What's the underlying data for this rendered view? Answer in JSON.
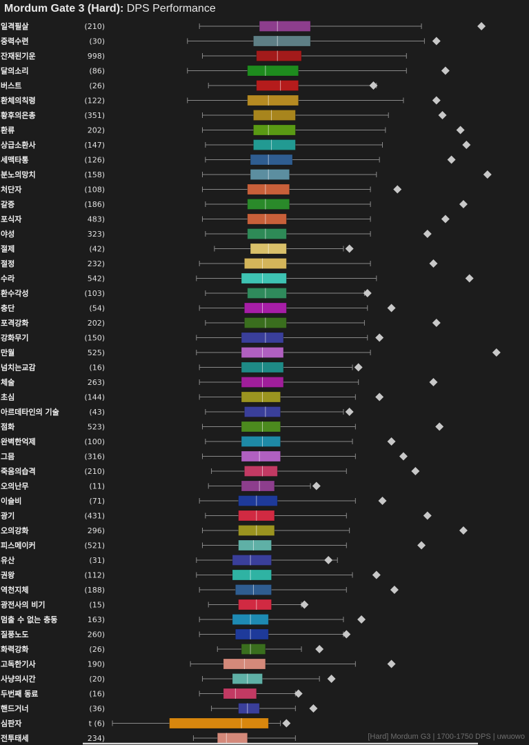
{
  "title_bold": "Mordum Gate 3 (Hard):",
  "title_rest": " DPS Performance",
  "watermark": "[Hard] Mordum G3 | 1700-1750 DPS | uwuowo",
  "chart_data": {
    "type": "box",
    "orientation": "horizontal",
    "xlim": [
      0,
      100
    ],
    "axis_labels_shown": false,
    "categories": [
      {
        "name": "일격필살",
        "count": "(210)",
        "color": "#8d3e8d",
        "w": [
          29,
          103
        ],
        "q": [
          49,
          66
        ],
        "m": 55,
        "o": [
          123
        ]
      },
      {
        "name": "중력수련",
        "count": "(30)",
        "color": "#5e7f85",
        "w": [
          25,
          104
        ],
        "q": [
          47,
          66
        ],
        "m": 55,
        "o": [
          108
        ]
      },
      {
        "name": "잔재된기운",
        "count": "998)",
        "color": "#a31b1b",
        "w": [
          30,
          98
        ],
        "q": [
          48,
          63
        ],
        "m": 55,
        "o": []
      },
      {
        "name": "달의소리",
        "count": "(86)",
        "color": "#1e8c1e",
        "w": [
          25,
          98
        ],
        "q": [
          45,
          62
        ],
        "m": 51,
        "o": [
          111
        ]
      },
      {
        "name": "버스트",
        "count": "(26)",
        "color": "#b51c1c",
        "w": [
          32,
          88
        ],
        "q": [
          48,
          62
        ],
        "m": 56,
        "o": [
          87
        ]
      },
      {
        "name": "환체의칙령",
        "count": "(122)",
        "color": "#b58a22",
        "w": [
          25,
          97
        ],
        "q": [
          45,
          62
        ],
        "m": 52,
        "o": [
          108
        ]
      },
      {
        "name": "황후의은총",
        "count": "(351)",
        "color": "#a8851d",
        "w": [
          30,
          92
        ],
        "q": [
          47,
          61
        ],
        "m": 53,
        "o": [
          110
        ]
      },
      {
        "name": "환류",
        "count": "202)",
        "color": "#5a9a14",
        "w": [
          30,
          91
        ],
        "q": [
          47,
          61
        ],
        "m": 52,
        "o": [
          116
        ]
      },
      {
        "name": "상급소환사",
        "count": "(147)",
        "color": "#229a92",
        "w": [
          31,
          90
        ],
        "q": [
          47,
          61
        ],
        "m": 53,
        "o": [
          118
        ]
      },
      {
        "name": "세맥타통",
        "count": "(126)",
        "color": "#2f5d90",
        "w": [
          31,
          89
        ],
        "q": [
          46,
          60
        ],
        "m": 52,
        "o": [
          113
        ]
      },
      {
        "name": "분노의망치",
        "count": "(158)",
        "color": "#5c8ea0",
        "w": [
          30,
          88
        ],
        "q": [
          46,
          59
        ],
        "m": 52,
        "o": [
          125
        ]
      },
      {
        "name": "처단자",
        "count": "(108)",
        "color": "#c8603a",
        "w": [
          30,
          86
        ],
        "q": [
          45,
          59
        ],
        "m": 51,
        "o": [
          95
        ]
      },
      {
        "name": "갈증",
        "count": "(186)",
        "color": "#2a8a2a",
        "w": [
          31,
          86
        ],
        "q": [
          45,
          59
        ],
        "m": 51,
        "o": [
          117
        ]
      },
      {
        "name": "포식자",
        "count": "483)",
        "color": "#c8603a",
        "w": [
          30,
          86
        ],
        "q": [
          45,
          58
        ],
        "m": 51,
        "o": [
          111
        ]
      },
      {
        "name": "야성",
        "count": "323)",
        "color": "#2e8a57",
        "w": [
          31,
          86
        ],
        "q": [
          45,
          58
        ],
        "m": 51,
        "o": [
          105
        ]
      },
      {
        "name": "절제",
        "count": "(42)",
        "color": "#d9c06a",
        "w": [
          34,
          77
        ],
        "q": [
          46,
          58
        ],
        "m": 52,
        "o": [
          79
        ]
      },
      {
        "name": "절정",
        "count": "232)",
        "color": "#d4b55a",
        "w": [
          29,
          86
        ],
        "q": [
          44,
          58
        ],
        "m": 50,
        "o": [
          107
        ]
      },
      {
        "name": "수라",
        "count": "542)",
        "color": "#3ec3b3",
        "w": [
          28,
          88
        ],
        "q": [
          43,
          58
        ],
        "m": 50,
        "o": [
          119
        ]
      },
      {
        "name": "환수각성",
        "count": "(103)",
        "color": "#2f8a5c",
        "w": [
          31,
          84
        ],
        "q": [
          45,
          58
        ],
        "m": 51,
        "o": [
          85
        ]
      },
      {
        "name": "충단",
        "count": "(54)",
        "color": "#a61ea6",
        "w": [
          29,
          85
        ],
        "q": [
          44,
          58
        ],
        "m": 50,
        "o": [
          93
        ]
      },
      {
        "name": "포격강화",
        "count": "202)",
        "color": "#3a6e1e",
        "w": [
          31,
          84
        ],
        "q": [
          44,
          58
        ],
        "m": 51,
        "o": [
          108
        ]
      },
      {
        "name": "강화무기",
        "count": "(150)",
        "color": "#3a3f9a",
        "w": [
          28,
          85
        ],
        "q": [
          43,
          57
        ],
        "m": 51,
        "o": [
          89
        ]
      },
      {
        "name": "만월",
        "count": "525)",
        "color": "#b060c0",
        "w": [
          28,
          86
        ],
        "q": [
          43,
          57
        ],
        "m": 50,
        "o": [
          128
        ]
      },
      {
        "name": "넘치는교감",
        "count": "(16)",
        "color": "#1e8a86",
        "w": [
          29,
          80
        ],
        "q": [
          43,
          57
        ],
        "m": 50,
        "o": [
          82
        ]
      },
      {
        "name": "체술",
        "count": "263)",
        "color": "#a01e9a",
        "w": [
          29,
          82
        ],
        "q": [
          43,
          57
        ],
        "m": 50,
        "o": [
          107
        ]
      },
      {
        "name": "초심",
        "count": "(144)",
        "color": "#9b9420",
        "w": [
          29,
          81
        ],
        "q": [
          43,
          56
        ],
        "m": 50,
        "o": [
          89
        ]
      },
      {
        "name": "아르데타인의 기술",
        "count": "(43)",
        "color": "#3a3f9a",
        "w": [
          31,
          77
        ],
        "q": [
          44,
          56
        ],
        "m": 51,
        "o": [
          79
        ]
      },
      {
        "name": "점화",
        "count": "523)",
        "color": "#4c8a1e",
        "w": [
          30,
          81
        ],
        "q": [
          43,
          56
        ],
        "m": 50,
        "o": [
          109
        ]
      },
      {
        "name": "완벽한억제",
        "count": "(100)",
        "color": "#1e8aa6",
        "w": [
          31,
          80
        ],
        "q": [
          43,
          56
        ],
        "m": 50,
        "o": [
          93
        ]
      },
      {
        "name": "그믐",
        "count": "(316)",
        "color": "#b060c0",
        "w": [
          30,
          81
        ],
        "q": [
          43,
          56
        ],
        "m": 49,
        "o": [
          97
        ]
      },
      {
        "name": "죽음의습격",
        "count": "(210)",
        "color": "#c23a63",
        "w": [
          33,
          78
        ],
        "q": [
          44,
          55
        ],
        "m": 50,
        "o": [
          101
        ]
      },
      {
        "name": "오의난무",
        "count": "(11)",
        "color": "#8d3e8d",
        "w": [
          32,
          66
        ],
        "q": [
          43,
          54
        ],
        "m": 49,
        "o": [
          68
        ]
      },
      {
        "name": "이슬비",
        "count": "(71)",
        "color": "#1e3a9a",
        "w": [
          29,
          81
        ],
        "q": [
          42,
          55
        ],
        "m": 48,
        "o": [
          90
        ]
      },
      {
        "name": "광기",
        "count": "(431)",
        "color": "#d12a42",
        "w": [
          31,
          78
        ],
        "q": [
          42,
          54
        ],
        "m": 48,
        "o": [
          105
        ]
      },
      {
        "name": "오의강화",
        "count": "296)",
        "color": "#9b9420",
        "w": [
          30,
          79
        ],
        "q": [
          42,
          54
        ],
        "m": 48,
        "o": [
          117
        ]
      },
      {
        "name": "피스메이커",
        "count": "(521)",
        "color": "#5fb0a6",
        "w": [
          30,
          78
        ],
        "q": [
          42,
          53
        ],
        "m": 47,
        "o": [
          103
        ]
      },
      {
        "name": "유산",
        "count": "(31)",
        "color": "#3a3f9a",
        "w": [
          28,
          75
        ],
        "q": [
          40,
          53
        ],
        "m": 46,
        "o": [
          72
        ]
      },
      {
        "name": "권왕",
        "count": "(112)",
        "color": "#2fb3a3",
        "w": [
          28,
          80
        ],
        "q": [
          40,
          53
        ],
        "m": 46,
        "o": [
          88
        ]
      },
      {
        "name": "역천지체",
        "count": "(188)",
        "color": "#2f5d90",
        "w": [
          29,
          78
        ],
        "q": [
          41,
          53
        ],
        "m": 47,
        "o": [
          94
        ]
      },
      {
        "name": "광전사의 비기",
        "count": "(15)",
        "color": "#d12a42",
        "w": [
          32,
          63
        ],
        "q": [
          42,
          53
        ],
        "m": 48,
        "o": [
          64
        ]
      },
      {
        "name": "멈출 수 없는 충동",
        "count": "163)",
        "color": "#1e8ab3",
        "w": [
          29,
          77
        ],
        "q": [
          40,
          52
        ],
        "m": 46,
        "o": [
          83
        ]
      },
      {
        "name": "질풍노도",
        "count": "260)",
        "color": "#1e3a9a",
        "w": [
          29,
          77
        ],
        "q": [
          41,
          52
        ],
        "m": 46,
        "o": [
          78
        ]
      },
      {
        "name": "화력강화",
        "count": "(26)",
        "color": "#3a6e1e",
        "w": [
          35,
          63
        ],
        "q": [
          43,
          51
        ],
        "m": 46,
        "o": [
          69
        ]
      },
      {
        "name": "고독한기사",
        "count": "190)",
        "color": "#d4897a",
        "w": [
          26,
          81
        ],
        "q": [
          37,
          51
        ],
        "m": 44,
        "o": [
          93
        ]
      },
      {
        "name": "사냥의시간",
        "count": "(20)",
        "color": "#5fb0a6",
        "w": [
          30,
          69
        ],
        "q": [
          40,
          50
        ],
        "m": 45,
        "o": [
          73
        ]
      },
      {
        "name": "두번째 동료",
        "count": "(16)",
        "color": "#c23a63",
        "w": [
          29,
          61
        ],
        "q": [
          37,
          48
        ],
        "m": 41,
        "o": [
          62
        ]
      },
      {
        "name": "핸드거너",
        "count": "(36)",
        "color": "#3a3f9a",
        "w": [
          33,
          61
        ],
        "q": [
          42,
          49
        ],
        "m": 45,
        "o": [
          67
        ]
      },
      {
        "name": "심판자",
        "count": "t (6)",
        "color": "#d8870e",
        "w": [
          0,
          56
        ],
        "q": [
          19,
          52
        ],
        "m": 43,
        "o": [
          58
        ]
      },
      {
        "name": "전투태세",
        "count": "234)",
        "color": "#d4897a",
        "w": [
          27,
          61
        ],
        "q": [
          35,
          45
        ],
        "m": 38,
        "o": []
      }
    ]
  }
}
